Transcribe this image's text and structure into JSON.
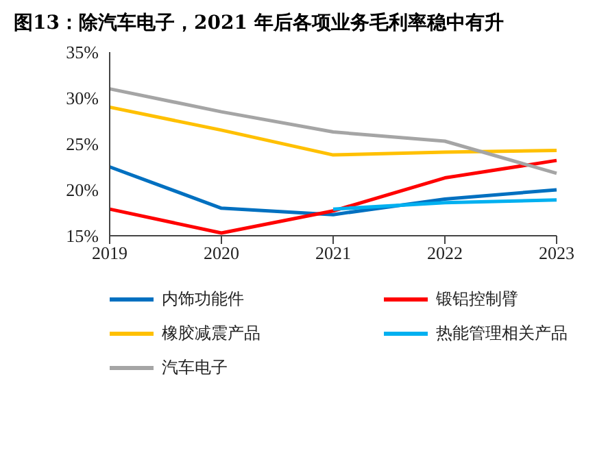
{
  "chart_data": {
    "type": "line",
    "title": "图13：除汽车电子，2021 年后各项业务毛利率稳中有升",
    "categories": [
      "2019",
      "2020",
      "2021",
      "2022",
      "2023"
    ],
    "series": [
      {
        "name": "内饰功能件",
        "color": "#0070c0",
        "values": [
          22.5,
          18.0,
          17.3,
          19.0,
          20.0
        ]
      },
      {
        "name": "锻铝控制臂",
        "color": "#ff0000",
        "values": [
          17.9,
          15.3,
          17.7,
          21.3,
          23.2
        ]
      },
      {
        "name": "橡胶减震产品",
        "color": "#ffc000",
        "values": [
          29.0,
          26.5,
          23.8,
          24.1,
          24.3
        ]
      },
      {
        "name": "热能管理相关产品",
        "color": "#00b0f0",
        "values": [
          null,
          null,
          17.9,
          18.6,
          18.9
        ]
      },
      {
        "name": "汽车电子",
        "color": "#a5a5a5",
        "values": [
          31.0,
          28.5,
          26.3,
          25.3,
          21.8
        ]
      }
    ],
    "ylim": [
      15,
      35
    ],
    "yticks": [
      {
        "value": 15,
        "label": "15%"
      },
      {
        "value": 20,
        "label": "20%"
      },
      {
        "value": 25,
        "label": "25%"
      },
      {
        "value": 30,
        "label": "30%"
      },
      {
        "value": 35,
        "label": "35%"
      }
    ],
    "grid": false,
    "legend": "bottom",
    "marker": "none",
    "line_style": "solid"
  }
}
